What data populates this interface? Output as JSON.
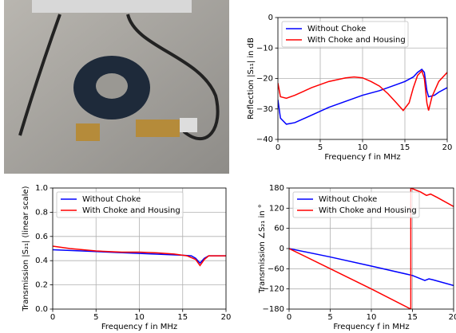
{
  "chart_data": [
    {
      "type": "line",
      "xlabel": "Frequency f in MHz",
      "ylabel": "Reflection |S₁₁| in dB",
      "xlim": [
        0,
        20
      ],
      "ylim": [
        -40,
        0
      ],
      "xticks": [
        0,
        5,
        10,
        15,
        20
      ],
      "yticks": [
        {
          "value": -40,
          "label": "−40"
        },
        {
          "value": -30,
          "label": "−30"
        },
        {
          "value": -20,
          "label": "−20"
        },
        {
          "value": -10,
          "label": "−10"
        },
        0
      ],
      "grid": true,
      "legend": "upper left",
      "series": [
        {
          "name": "Without Choke",
          "color": "#0000ff",
          "x": [
            0,
            0.3,
            1,
            2,
            4,
            6,
            8,
            10,
            12,
            14,
            15,
            16,
            16.5,
            17,
            17.3,
            17.6,
            17.8,
            18.5,
            19,
            20
          ],
          "values": [
            -27,
            -33,
            -35,
            -34.5,
            -32,
            -29.5,
            -27.5,
            -25.5,
            -24,
            -22,
            -21,
            -19.5,
            -18,
            -17,
            -18,
            -24,
            -26,
            -25.5,
            -24.5,
            -23
          ]
        },
        {
          "name": "With Choke and Housing",
          "color": "#ff0000",
          "x": [
            0,
            0.3,
            1,
            2,
            4,
            6,
            8,
            9,
            10,
            11,
            12,
            13,
            14,
            14.8,
            15.5,
            16,
            16.5,
            17,
            17.3,
            17.6,
            17.8,
            18.2,
            19,
            20
          ],
          "values": [
            -21.5,
            -26,
            -26.5,
            -25.5,
            -23,
            -21,
            -19.8,
            -19.5,
            -19.8,
            -21,
            -22.5,
            -25,
            -28,
            -30.5,
            -28,
            -23,
            -19,
            -17.5,
            -20,
            -28,
            -30.5,
            -26,
            -21,
            -18
          ]
        }
      ]
    },
    {
      "type": "line",
      "xlabel": "Frequency f in MHz",
      "ylabel": "Transmission |S₂₁| (linear scale)",
      "xlim": [
        0,
        20
      ],
      "ylim": [
        0,
        1
      ],
      "xticks": [
        0,
        5,
        10,
        15,
        20
      ],
      "yticks": [
        {
          "value": 0,
          "label": "0.0"
        },
        0.2,
        0.4,
        0.6,
        0.8,
        {
          "value": 1,
          "label": "1.0"
        }
      ],
      "grid": true,
      "legend": "upper left",
      "series": [
        {
          "name": "Without Choke",
          "color": "#0000ff",
          "x": [
            0,
            5,
            10,
            15,
            16,
            16.5,
            17,
            17.5,
            18,
            20
          ],
          "values": [
            0.49,
            0.475,
            0.46,
            0.445,
            0.44,
            0.42,
            0.38,
            0.42,
            0.44,
            0.44
          ]
        },
        {
          "name": "With Choke and Housing",
          "color": "#ff0000",
          "x": [
            0,
            2,
            5,
            8,
            10,
            12,
            14,
            15.5,
            16.5,
            17,
            17.5,
            18,
            20
          ],
          "values": [
            0.52,
            0.5,
            0.48,
            0.47,
            0.47,
            0.465,
            0.455,
            0.44,
            0.41,
            0.36,
            0.41,
            0.44,
            0.44
          ]
        }
      ]
    },
    {
      "type": "line",
      "xlabel": "Frequency f in MHz",
      "ylabel": "Transmission ∠S₂₁ in °",
      "xlim": [
        0,
        20
      ],
      "ylim": [
        -180,
        180
      ],
      "xticks": [
        0,
        5,
        10,
        15,
        20
      ],
      "yticks": [
        {
          "value": -180,
          "label": "−180"
        },
        {
          "value": -120,
          "label": "−120"
        },
        {
          "value": -60,
          "label": "−60"
        },
        0,
        60,
        120,
        180
      ],
      "grid": true,
      "legend": "upper left",
      "series": [
        {
          "name": "Without Choke",
          "color": "#0000ff",
          "x": [
            0,
            5,
            10,
            15,
            16.5,
            17,
            17.5,
            20
          ],
          "values": [
            0,
            -25,
            -52,
            -80,
            -95,
            -90,
            -93,
            -110
          ]
        },
        {
          "name": "With Choke and Housing",
          "color": "#ff0000",
          "x": [
            0,
            5,
            10,
            14.8,
            14.8,
            16,
            16.7,
            17.2,
            18,
            20
          ],
          "values": [
            0,
            -60,
            -120,
            -180,
            180,
            168,
            158,
            162,
            152,
            125
          ]
        }
      ]
    }
  ]
}
